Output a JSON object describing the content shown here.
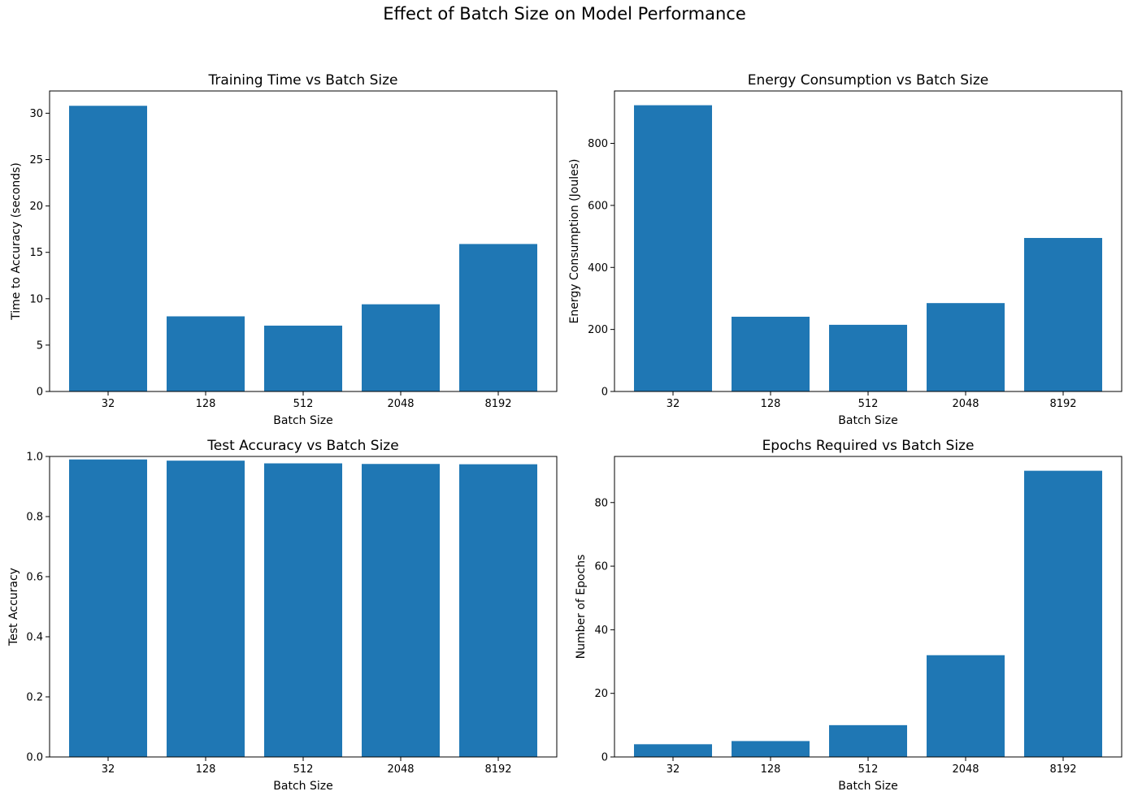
{
  "figure": {
    "suptitle": "Effect of Batch Size on Model Performance"
  },
  "chart_data": [
    {
      "type": "bar",
      "title": "Training Time vs Batch Size",
      "xlabel": "Batch Size",
      "ylabel": "Time to Accuracy (seconds)",
      "categories": [
        "32",
        "128",
        "512",
        "2048",
        "8192"
      ],
      "values": [
        30.8,
        8.1,
        7.1,
        9.4,
        15.9
      ],
      "ylim": [
        0,
        32.4
      ],
      "yticks": [
        0,
        5,
        10,
        15,
        20,
        25,
        30
      ],
      "ytick_labels": [
        "0",
        "5",
        "10",
        "15",
        "20",
        "25",
        "30"
      ],
      "bar_color": "#1f77b4"
    },
    {
      "type": "bar",
      "title": "Energy Consumption vs Batch Size",
      "xlabel": "Batch Size",
      "ylabel": "Energy Consumption (Joules)",
      "categories": [
        "32",
        "128",
        "512",
        "2048",
        "8192"
      ],
      "values": [
        923,
        241,
        215,
        285,
        495
      ],
      "ylim": [
        0,
        969
      ],
      "yticks": [
        0,
        200,
        400,
        600,
        800
      ],
      "ytick_labels": [
        "0",
        "200",
        "400",
        "600",
        "800"
      ],
      "bar_color": "#1f77b4"
    },
    {
      "type": "bar",
      "title": "Test Accuracy vs Batch Size",
      "xlabel": "Batch Size",
      "ylabel": "Test Accuracy",
      "categories": [
        "32",
        "128",
        "512",
        "2048",
        "8192"
      ],
      "values": [
        0.99,
        0.986,
        0.977,
        0.975,
        0.974
      ],
      "ylim": [
        0,
        1.0
      ],
      "yticks": [
        0,
        0.2,
        0.4,
        0.6,
        0.8,
        1.0
      ],
      "ytick_labels": [
        "0.0",
        "0.2",
        "0.4",
        "0.6",
        "0.8",
        "1.0"
      ],
      "bar_color": "#1f77b4"
    },
    {
      "type": "bar",
      "title": "Epochs Required vs Batch Size",
      "xlabel": "Batch Size",
      "ylabel": "Number of Epochs",
      "categories": [
        "32",
        "128",
        "512",
        "2048",
        "8192"
      ],
      "values": [
        4,
        5,
        10,
        32,
        90
      ],
      "ylim": [
        0,
        94.5
      ],
      "yticks": [
        0,
        20,
        40,
        60,
        80
      ],
      "ytick_labels": [
        "0",
        "20",
        "40",
        "60",
        "80"
      ],
      "bar_color": "#1f77b4"
    }
  ]
}
